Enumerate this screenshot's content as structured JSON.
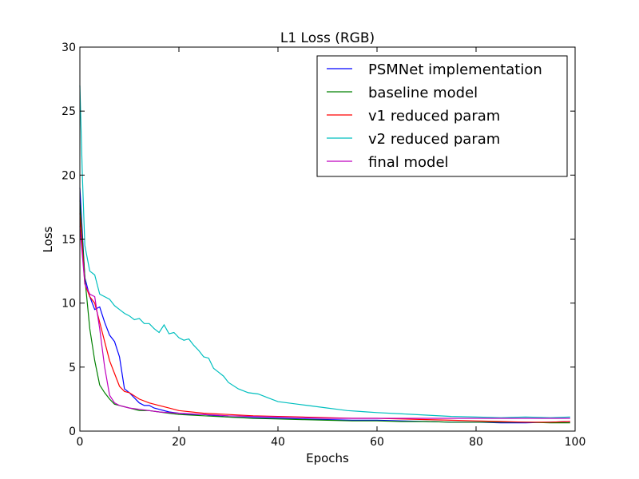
{
  "chart_data": {
    "type": "line",
    "title": "L1 Loss (RGB)",
    "xlabel": "Epochs",
    "ylabel": "Loss",
    "xlim": [
      0,
      100
    ],
    "ylim": [
      0,
      30
    ],
    "xticks": [
      "0",
      "20",
      "40",
      "60",
      "80",
      "100"
    ],
    "yticks": [
      "0",
      "5",
      "10",
      "15",
      "20",
      "25",
      "30"
    ],
    "legend_position": "top-right",
    "grid": false,
    "series": [
      {
        "name": "PSMNet implementation",
        "color": "#0000ff",
        "x": [
          0,
          1,
          2,
          3,
          4,
          5,
          6,
          7,
          8,
          9,
          10,
          11,
          12,
          13,
          14,
          15,
          16,
          18,
          20,
          22,
          25,
          30,
          35,
          40,
          45,
          50,
          55,
          60,
          65,
          70,
          75,
          80,
          85,
          90,
          95,
          99
        ],
        "y": [
          19,
          12,
          10.5,
          9.5,
          9.7,
          8.5,
          7.5,
          7,
          5.8,
          3.3,
          3,
          2.6,
          2.2,
          2,
          2,
          1.8,
          1.7,
          1.5,
          1.4,
          1.3,
          1.3,
          1.1,
          1.05,
          1,
          0.95,
          0.9,
          0.85,
          0.85,
          0.8,
          0.75,
          0.7,
          0.7,
          0.65,
          0.65,
          0.7,
          0.75
        ]
      },
      {
        "name": "baseline model",
        "color": "#008000",
        "x": [
          0,
          1,
          2,
          3,
          4,
          5,
          6,
          7,
          8,
          9,
          10,
          12,
          14,
          16,
          18,
          20,
          25,
          30,
          35,
          40,
          45,
          50,
          55,
          60,
          65,
          70,
          75,
          80,
          85,
          90,
          95,
          99
        ],
        "y": [
          18,
          12,
          8,
          5.5,
          3.6,
          3,
          2.5,
          2.1,
          2,
          1.9,
          1.8,
          1.6,
          1.6,
          1.5,
          1.4,
          1.3,
          1.2,
          1.1,
          1,
          0.95,
          0.9,
          0.85,
          0.8,
          0.8,
          0.75,
          0.75,
          0.7,
          0.7,
          0.7,
          0.7,
          0.65,
          0.65
        ]
      },
      {
        "name": "v1 reduced param",
        "color": "#ff0000",
        "x": [
          0,
          1,
          2,
          3,
          4,
          5,
          6,
          7,
          8,
          9,
          10,
          12,
          14,
          16,
          18,
          20,
          25,
          30,
          35,
          40,
          45,
          50,
          55,
          60,
          65,
          70,
          75,
          80,
          85,
          90,
          95,
          99
        ],
        "y": [
          17,
          11.5,
          10.5,
          10,
          8.5,
          7,
          5.5,
          4.5,
          3.5,
          3.1,
          3,
          2.5,
          2.2,
          2,
          1.8,
          1.6,
          1.4,
          1.3,
          1.2,
          1.15,
          1.1,
          1.05,
          1,
          1,
          0.95,
          0.9,
          0.85,
          0.8,
          0.75,
          0.7,
          0.7,
          0.75
        ]
      },
      {
        "name": "v2 reduced param",
        "color": "#00bfbf",
        "x": [
          0,
          0.5,
          1,
          2,
          3,
          4,
          5,
          6,
          7,
          8,
          9,
          10,
          11,
          12,
          13,
          14,
          15,
          16,
          17,
          18,
          19,
          20,
          21,
          22,
          23,
          24,
          25,
          26,
          27,
          28,
          29,
          30,
          32,
          34,
          36,
          38,
          40,
          42,
          44,
          46,
          48,
          50,
          52,
          54,
          56,
          58,
          60,
          65,
          70,
          75,
          80,
          85,
          90,
          95,
          99
        ],
        "y": [
          27,
          20,
          14.5,
          12.5,
          12.2,
          10.7,
          10.5,
          10.3,
          9.8,
          9.5,
          9.2,
          9,
          8.7,
          8.8,
          8.4,
          8.4,
          8,
          7.7,
          8.3,
          7.6,
          7.7,
          7.3,
          7.1,
          7.2,
          6.7,
          6.3,
          5.8,
          5.7,
          4.9,
          4.6,
          4.3,
          3.8,
          3.3,
          3,
          2.9,
          2.6,
          2.3,
          2.2,
          2.1,
          2,
          1.9,
          1.8,
          1.7,
          1.6,
          1.55,
          1.5,
          1.45,
          1.35,
          1.25,
          1.15,
          1.1,
          1.05,
          1.1,
          1.05,
          1.1
        ]
      },
      {
        "name": "final model",
        "color": "#bf00bf",
        "x": [
          0,
          1,
          2,
          3,
          4,
          5,
          6,
          7,
          8,
          9,
          10,
          12,
          14,
          16,
          18,
          20,
          25,
          30,
          35,
          40,
          45,
          50,
          55,
          60,
          65,
          70,
          75,
          80,
          85,
          90,
          95,
          99
        ],
        "y": [
          16,
          11.5,
          10.7,
          10.5,
          8,
          5,
          2.8,
          2.2,
          2,
          1.9,
          1.8,
          1.7,
          1.6,
          1.5,
          1.45,
          1.4,
          1.3,
          1.2,
          1.15,
          1.1,
          1.05,
          1,
          1,
          1,
          1,
          1,
          1,
          1,
          1,
          1,
          1,
          1
        ]
      }
    ]
  }
}
